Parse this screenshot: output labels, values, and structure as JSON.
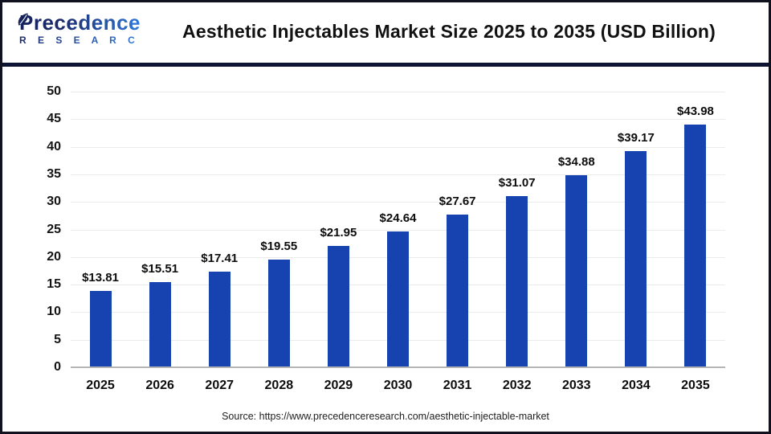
{
  "header": {
    "logo": {
      "name": "Precedence",
      "sub": "R E S E A R C H"
    },
    "title": "Aesthetic Injectables Market Size 2025 to 2035 (USD Billion)"
  },
  "footer": {
    "source": "Source: https://www.precedenceresearch.com/aesthetic-injectable-market"
  },
  "chart_data": {
    "type": "bar",
    "title": "Aesthetic Injectables Market Size 2025 to 2035 (USD Billion)",
    "categories": [
      "2025",
      "2026",
      "2027",
      "2028",
      "2029",
      "2030",
      "2031",
      "2032",
      "2033",
      "2034",
      "2035"
    ],
    "values": [
      13.81,
      15.51,
      17.41,
      19.55,
      21.95,
      24.64,
      27.67,
      31.07,
      34.88,
      39.17,
      43.98
    ],
    "value_prefix": "$",
    "unit": "USD Billion",
    "ylim": [
      0,
      50
    ],
    "yticks": [
      0,
      5,
      10,
      15,
      20,
      25,
      30,
      35,
      40,
      45,
      50
    ],
    "grid": "horizontal",
    "legend_position": "none",
    "xlabel": "",
    "ylabel": ""
  },
  "colors": {
    "bar": "#1743b0",
    "grid_line": "#ebebeb",
    "baseline": "#b5b5b5",
    "divider": "#0d1433",
    "title_text": "#111111",
    "logo_dark": "#1b2a6b",
    "logo_light": "#2f77d9",
    "source_text": "#222222",
    "background": "#ffffff"
  }
}
